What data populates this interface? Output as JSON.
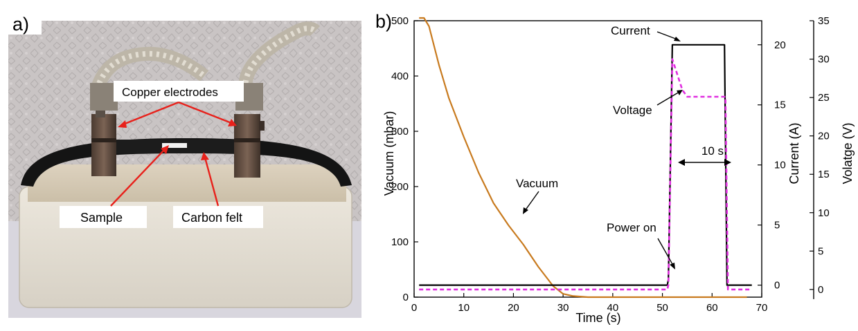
{
  "panel_a": {
    "label": "a)",
    "callouts": {
      "electrodes": "Copper electrodes",
      "sample": "Sample",
      "felt": "Carbon felt"
    }
  },
  "panel_b": {
    "label": "b)"
  },
  "chart_data": {
    "type": "line",
    "x_axis": {
      "label": "Time (s)",
      "range": [
        0,
        70
      ],
      "ticks": [
        0,
        10,
        20,
        30,
        40,
        50,
        60,
        70
      ]
    },
    "y_axes": [
      {
        "id": "vacuum",
        "label": "Vacuum (mbar)",
        "side": "left",
        "range": [
          0,
          500
        ],
        "ticks": [
          0,
          100,
          200,
          300,
          400,
          500
        ]
      },
      {
        "id": "current",
        "label": "Current (A)",
        "side": "right",
        "range": [
          -1,
          22
        ],
        "ticks": [
          0,
          5,
          10,
          15,
          20
        ]
      },
      {
        "id": "voltage",
        "label": "Volatge (V)",
        "side": "right-outer",
        "range": [
          -1,
          35
        ],
        "ticks": [
          0,
          5,
          10,
          15,
          20,
          25,
          30,
          35
        ]
      }
    ],
    "series": [
      {
        "id": "vacuum",
        "axis": "vacuum",
        "color": "#c87a1e",
        "style": "solid",
        "x": [
          1,
          2,
          3,
          5,
          7,
          10,
          13,
          16,
          19,
          22,
          25,
          28,
          30,
          32,
          35,
          40,
          50,
          60,
          67
        ],
        "y": [
          505,
          505,
          490,
          420,
          360,
          290,
          225,
          170,
          130,
          95,
          55,
          20,
          6,
          2,
          0,
          0,
          0,
          0,
          0
        ]
      },
      {
        "id": "current",
        "axis": "current",
        "color": "#000000",
        "style": "solid",
        "x": [
          1,
          51,
          51.2,
          52,
          52.5,
          62,
          62.5,
          63,
          68
        ],
        "y": [
          0,
          0,
          0.5,
          20,
          20,
          20,
          20,
          0,
          0
        ]
      },
      {
        "id": "voltage",
        "axis": "voltage",
        "color": "#e02ee0",
        "style": "dashed",
        "x": [
          1,
          51,
          51.2,
          52,
          53,
          54,
          55,
          62,
          62.7,
          63.2,
          68
        ],
        "y": [
          0,
          0,
          0.6,
          30,
          28,
          26,
          25.1,
          25.1,
          25.1,
          0,
          0
        ]
      }
    ],
    "annotations": {
      "current": "Current",
      "voltage": "Voltage",
      "vacuum": "Vacuum",
      "power_on": "Power on",
      "duration": "10 s"
    }
  }
}
